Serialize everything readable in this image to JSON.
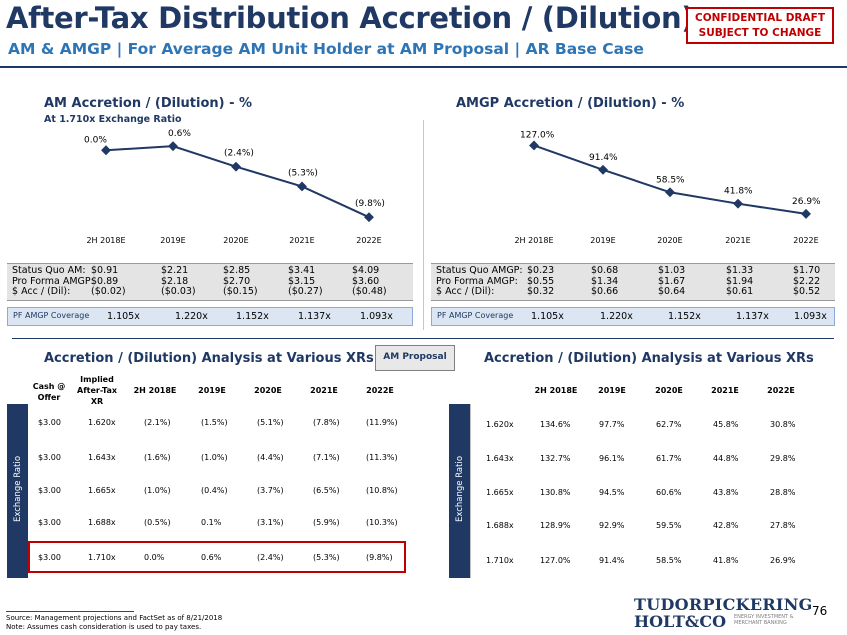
{
  "header": {
    "title": "After-Tax Distribution Accretion / (Dilution)",
    "subtitle": "AM & AMGP | For Average AM Unit Holder at AM Proposal | AR Base Case",
    "confidential_line1": "CONFIDENTIAL DRAFT",
    "confidential_line2": "SUBJECT TO CHANGE"
  },
  "am_section": {
    "title": "AM Accretion / (Dilution) - %",
    "subtitle": "At 1.710x Exchange Ratio",
    "status_labels": [
      "Status Quo AM:",
      "Pro Forma AMGP:",
      "$ Acc / (Dil):"
    ],
    "status_quo": [
      "$0.91",
      "$2.21",
      "$2.85",
      "$3.41",
      "$4.09"
    ],
    "pro_forma": [
      "$0.89",
      "$2.18",
      "$2.70",
      "$3.15",
      "$3.60"
    ],
    "acc_dil": [
      "($0.02)",
      "($0.03)",
      "($0.15)",
      "($0.27)",
      "($0.48)"
    ],
    "coverage_label": "PF AMGP Coverage",
    "coverage": [
      "1.105x",
      "1.220x",
      "1.152x",
      "1.137x",
      "1.093x"
    ]
  },
  "amgp_section": {
    "title": "AMGP Accretion / (Dilution) - %",
    "status_labels": [
      "Status Quo AMGP:",
      "Pro Forma AMGP:",
      "$ Acc / (Dil):"
    ],
    "status_quo": [
      "$0.23",
      "$0.68",
      "$1.03",
      "$1.33",
      "$1.70"
    ],
    "pro_forma": [
      "$0.55",
      "$1.34",
      "$1.67",
      "$1.94",
      "$2.22"
    ],
    "acc_dil": [
      "$0.32",
      "$0.66",
      "$0.64",
      "$0.61",
      "$0.52"
    ],
    "coverage_label": "PF AMGP Coverage",
    "coverage": [
      "1.105x",
      "1.220x",
      "1.152x",
      "1.137x",
      "1.093x"
    ]
  },
  "chart_data": [
    {
      "type": "line",
      "categories": [
        "2H 2018E",
        "2019E",
        "2020E",
        "2021E",
        "2022E"
      ],
      "values": [
        0.0,
        0.6,
        -2.4,
        -5.3,
        -9.8
      ],
      "data_labels": [
        "0.0%",
        "0.6%",
        "(2.4%)",
        "(5.3%)",
        "(9.8%)"
      ],
      "ylim": [
        -10.5,
        1.5
      ],
      "grid": false,
      "marker_color": "#1f3864"
    },
    {
      "type": "line",
      "categories": [
        "2H 2018E",
        "2019E",
        "2020E",
        "2021E",
        "2022E"
      ],
      "values": [
        127.0,
        91.4,
        58.5,
        41.8,
        26.9
      ],
      "data_labels": [
        "127.0%",
        "91.4%",
        "58.5%",
        "41.8%",
        "26.9%"
      ],
      "ylim": [
        15,
        135
      ],
      "grid": false,
      "marker_color": "#1f3864"
    }
  ],
  "analysis": {
    "left_title": "Accretion / (Dilution) Analysis at Various XRs",
    "right_title": "Accretion / (Dilution) Analysis at Various XRs",
    "proposal_button": "AM Proposal",
    "exchange_ratio_label": "Exchange Ratio",
    "left_headers": {
      "cash_line1": "Cash @",
      "cash_line2": "Offer",
      "implied_line1": "Implied",
      "implied_line2": "After-Tax",
      "implied_line3": "XR",
      "years": [
        "2H 2018E",
        "2019E",
        "2020E",
        "2021E",
        "2022E"
      ]
    },
    "right_headers": [
      "2H 2018E",
      "2019E",
      "2020E",
      "2021E",
      "2022E"
    ],
    "left_rows": [
      {
        "cash": "$3.00",
        "xr": "1.620x",
        "vals": [
          "(2.1%)",
          "(1.5%)",
          "(5.1%)",
          "(7.8%)",
          "(11.9%)"
        ]
      },
      {
        "cash": "$3.00",
        "xr": "1.643x",
        "vals": [
          "(1.6%)",
          "(1.0%)",
          "(4.4%)",
          "(7.1%)",
          "(11.3%)"
        ]
      },
      {
        "cash": "$3.00",
        "xr": "1.665x",
        "vals": [
          "(1.0%)",
          "(0.4%)",
          "(3.7%)",
          "(6.5%)",
          "(10.8%)"
        ]
      },
      {
        "cash": "$3.00",
        "xr": "1.688x",
        "vals": [
          "(0.5%)",
          "0.1%",
          "(3.1%)",
          "(5.9%)",
          "(10.3%)"
        ]
      },
      {
        "cash": "$3.00",
        "xr": "1.710x",
        "vals": [
          "0.0%",
          "0.6%",
          "(2.4%)",
          "(5.3%)",
          "(9.8%)"
        ]
      }
    ],
    "right_rows": [
      {
        "xr": "1.620x",
        "vals": [
          "134.6%",
          "97.7%",
          "62.7%",
          "45.8%",
          "30.8%"
        ]
      },
      {
        "xr": "1.643x",
        "vals": [
          "132.7%",
          "96.1%",
          "61.7%",
          "44.8%",
          "29.8%"
        ]
      },
      {
        "xr": "1.665x",
        "vals": [
          "130.8%",
          "94.5%",
          "60.6%",
          "43.8%",
          "28.8%"
        ]
      },
      {
        "xr": "1.688x",
        "vals": [
          "128.9%",
          "92.9%",
          "59.5%",
          "42.8%",
          "27.8%"
        ]
      },
      {
        "xr": "1.710x",
        "vals": [
          "127.0%",
          "91.4%",
          "58.5%",
          "41.8%",
          "26.9%"
        ]
      }
    ]
  },
  "footer": {
    "source": "Source: Management projections and FactSet as of 8/21/2018",
    "note": "Note: Assumes cash consideration is used to pay taxes.",
    "logo_line1": "TUDORPICKERING",
    "logo_line2": "HOLT&CO",
    "logo_tagline": "ENERGY INVESTMENT & MERCHANT BANKING",
    "page_number": "76"
  }
}
